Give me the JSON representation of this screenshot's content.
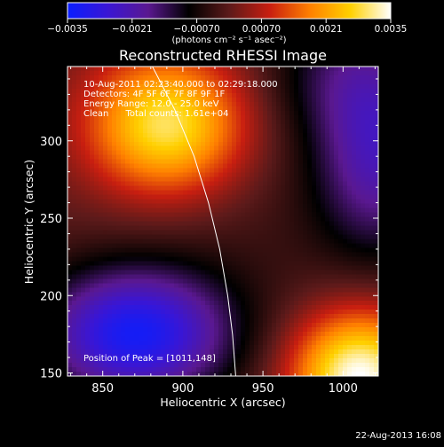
{
  "chart_data": {
    "type": "heatmap",
    "title": "Reconstructed RHESSI Image",
    "xlabel": "Heliocentric X (arcsec)",
    "ylabel": "Heliocentric Y (arcsec)",
    "xlim": [
      828,
      1022
    ],
    "ylim": [
      148,
      348
    ],
    "x_ticks": [
      850,
      900,
      950,
      1000
    ],
    "y_ticks": [
      150,
      200,
      250,
      300
    ],
    "x_tick_labels": [
      "850",
      "900",
      "950",
      "1000"
    ],
    "y_tick_labels": [
      "150",
      "200",
      "250",
      "300"
    ],
    "colorbar": {
      "range": [
        -0.0035,
        0.0035
      ],
      "tick_values": [
        -0.0035,
        -0.0021,
        -0.0007,
        0.0007,
        0.0021,
        0.0035
      ],
      "tick_labels": [
        "−0.0035",
        "−0.0021",
        "−0.00070",
        "0.00070",
        "0.0021",
        "0.0035"
      ],
      "unit": "(photons cm⁻² s⁻¹ asec⁻²)"
    },
    "colormap_stops": [
      "#0a1eff",
      "#3a16d4",
      "#5a1890",
      "#000000",
      "#5c1a1a",
      "#c81e10",
      "#ff8000",
      "#ffd000",
      "#ffffff"
    ],
    "sources": [
      {
        "x": 890,
        "y": 310,
        "sigma_x": 35,
        "sigma_y": 32,
        "amplitude": 0.0031
      },
      {
        "x": 1010,
        "y": 148,
        "sigma_x": 30,
        "sigma_y": 30,
        "amplitude": 0.0036
      },
      {
        "x": 870,
        "y": 175,
        "sigma_x": 42,
        "sigma_y": 30,
        "amplitude": -0.0032
      },
      {
        "x": 1022,
        "y": 290,
        "sigma_x": 28,
        "sigma_y": 45,
        "amplitude": -0.002
      },
      {
        "x": 1000,
        "y": 345,
        "sigma_x": 35,
        "sigma_y": 30,
        "amplitude": -0.001
      },
      {
        "x": 945,
        "y": 250,
        "sigma_x": 70,
        "sigma_y": 70,
        "amplitude": -0.0003
      }
    ],
    "limb_curve": [
      {
        "x": 881,
        "y": 348
      },
      {
        "x": 895,
        "y": 320
      },
      {
        "x": 907,
        "y": 290
      },
      {
        "x": 916,
        "y": 260
      },
      {
        "x": 923,
        "y": 230
      },
      {
        "x": 928,
        "y": 200
      },
      {
        "x": 931,
        "y": 175
      },
      {
        "x": 933,
        "y": 148
      }
    ],
    "grid": false
  },
  "info": {
    "time_range": "10-Aug-2011 02:23:40.000 to 02:29:18.000",
    "detectors": "Detectors: 4F 5F 6F 7F 8F 9F 1F",
    "energy": "Energy Range: 12.0 - 25.0 keV",
    "clean": "Clean      Total counts: 1.61e+04",
    "peak": "Position of Peak = [1011,148]"
  },
  "footer": {
    "date": "22-Aug-2013 16:08"
  }
}
